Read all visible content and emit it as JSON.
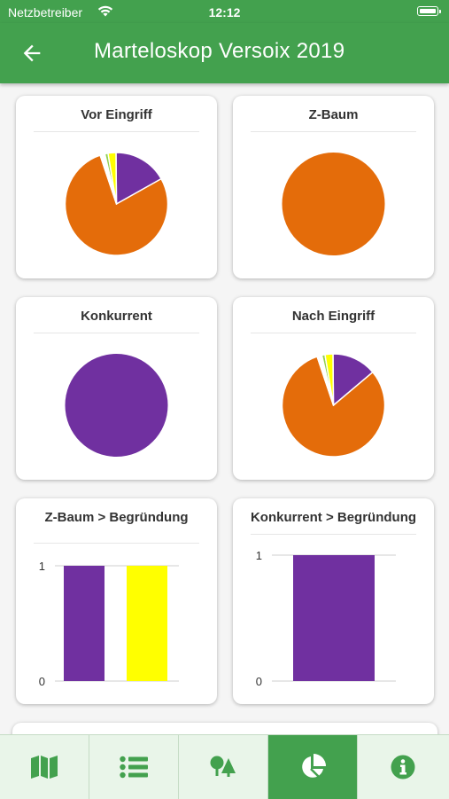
{
  "status_bar": {
    "carrier": "Netzbetreiber",
    "time": "12:12"
  },
  "app_bar": {
    "title": "Marteloskop Versoix 2019",
    "back_icon": "arrow-left-icon"
  },
  "colors": {
    "primary": "#43a14e",
    "purple": "#7030a0",
    "orange": "#e46c0a",
    "yellow": "#ffff00",
    "green": "#92d050",
    "white": "#ffffff"
  },
  "cards": {
    "vor_eingriff": {
      "title": "Vor Eingriff"
    },
    "z_baum": {
      "title": "Z-Baum"
    },
    "konkurrent": {
      "title": "Konkurrent"
    },
    "nach_eingriff": {
      "title": "Nach Eingriff"
    },
    "z_baum_begruendung": {
      "title": "Z-Baum > Begründung"
    },
    "konkurrent_begruendung": {
      "title": "Konkurrent > Begründung"
    }
  },
  "chart_data": [
    {
      "type": "pie",
      "title": "Vor Eingriff",
      "values": [
        0.17,
        0.78,
        0.015,
        0.01,
        0.025
      ],
      "colors": [
        "#7030a0",
        "#e46c0a",
        "#ffffff",
        "#92d050",
        "#ffff00"
      ]
    },
    {
      "type": "pie",
      "title": "Z-Baum",
      "values": [
        1.0
      ],
      "colors": [
        "#e46c0a"
      ]
    },
    {
      "type": "pie",
      "title": "Konkurrent",
      "values": [
        1.0
      ],
      "colors": [
        "#7030a0"
      ]
    },
    {
      "type": "pie",
      "title": "Nach Eingriff",
      "values": [
        0.14,
        0.81,
        0.015,
        0.01,
        0.025
      ],
      "colors": [
        "#7030a0",
        "#e46c0a",
        "#ffffff",
        "#92d050",
        "#ffff00"
      ]
    },
    {
      "type": "bar",
      "title": "Z-Baum > Begründung",
      "values": [
        1,
        1
      ],
      "colors": [
        "#7030a0",
        "#ffff00"
      ],
      "ylim": [
        0,
        1
      ],
      "yticks": [
        "0",
        "1"
      ]
    },
    {
      "type": "bar",
      "title": "Konkurrent > Begründung",
      "values": [
        1
      ],
      "colors": [
        "#7030a0"
      ],
      "ylim": [
        0,
        1
      ],
      "yticks": [
        "0",
        "1"
      ]
    }
  ],
  "bottom_nav": {
    "items": [
      {
        "icon": "map-icon",
        "active": false
      },
      {
        "icon": "list-icon",
        "active": false
      },
      {
        "icon": "trees-icon",
        "active": false
      },
      {
        "icon": "pie-chart-icon",
        "active": true
      },
      {
        "icon": "info-icon",
        "active": false
      }
    ]
  }
}
